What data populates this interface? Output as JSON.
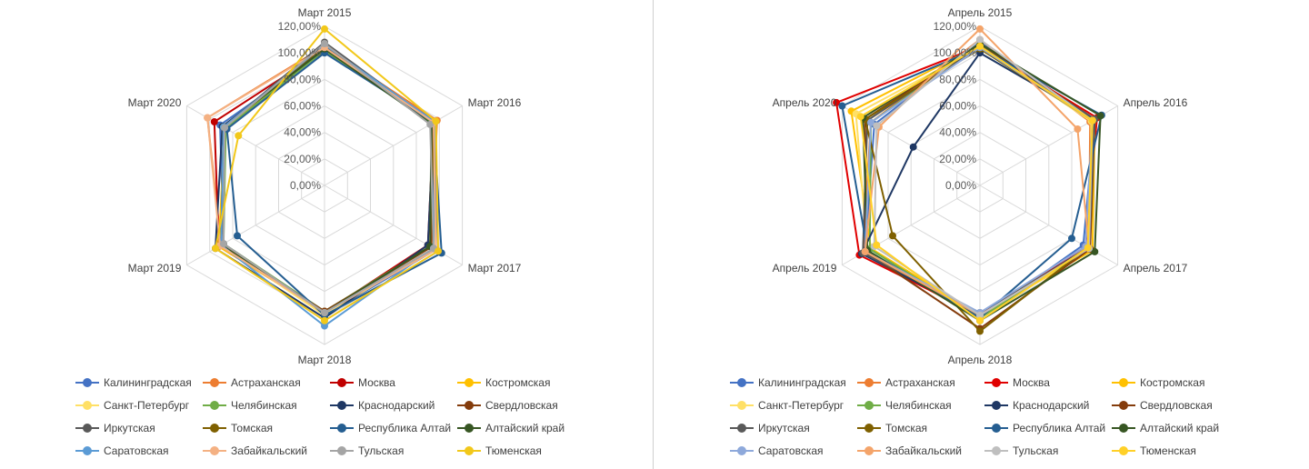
{
  "chart_data": [
    {
      "type": "radar",
      "title": "",
      "categories": [
        "Март 2015",
        "Март 2016",
        "Март 2017",
        "Март 2018",
        "Март 2019",
        "Март 2020"
      ],
      "r_ticks": [
        "0,00%",
        "20,00%",
        "40,00%",
        "60,00%",
        "80,00%",
        "100,00%",
        "120,00%"
      ],
      "rlim": [
        0,
        120
      ],
      "grid": true,
      "legend_position": "bottom",
      "series": [
        {
          "name": "Калининградская",
          "color": "#4472c4",
          "values": [
            101,
            97,
            97,
            98,
            88,
            91
          ]
        },
        {
          "name": "Астраханская",
          "color": "#ed7d31",
          "values": [
            105,
            98,
            93,
            95,
            90,
            102
          ]
        },
        {
          "name": "Москва",
          "color": "#c00000",
          "values": [
            102,
            95,
            90,
            96,
            92,
            96
          ]
        },
        {
          "name": "Костромская",
          "color": "#ffc000",
          "values": [
            104,
            95,
            92,
            96,
            92,
            87
          ]
        },
        {
          "name": "Санкт-Петербург",
          "color": "#ffe066",
          "values": [
            104,
            96,
            95,
            98,
            90,
            88
          ]
        },
        {
          "name": "Челябинская",
          "color": "#70ad47",
          "values": [
            102,
            94,
            92,
            95,
            88,
            86
          ]
        },
        {
          "name": "Краснодарский",
          "color": "#1f3864",
          "values": [
            103,
            95,
            90,
            100,
            95,
            89
          ]
        },
        {
          "name": "Свердловская",
          "color": "#843c0c",
          "values": [
            105,
            96,
            93,
            95,
            90,
            88
          ]
        },
        {
          "name": "Иркутская",
          "color": "#595959",
          "values": [
            108,
            95,
            95,
            96,
            88,
            88
          ]
        },
        {
          "name": "Томская",
          "color": "#7f6000",
          "values": [
            104,
            95,
            92,
            96,
            90,
            88
          ]
        },
        {
          "name": "Республика Алтай",
          "color": "#255e91",
          "values": [
            100,
            95,
            102,
            98,
            76,
            85
          ]
        },
        {
          "name": "Алтайский край",
          "color": "#375623",
          "values": [
            103,
            93,
            92,
            96,
            90,
            88
          ]
        },
        {
          "name": "Саратовская",
          "color": "#5b9bd5",
          "values": [
            106,
            96,
            95,
            106,
            90,
            88
          ]
        },
        {
          "name": "Забайкальский",
          "color": "#f4b183",
          "values": [
            104,
            95,
            97,
            96,
            91,
            102
          ]
        },
        {
          "name": "Тульская",
          "color": "#a5a5a5",
          "values": [
            107,
            92,
            95,
            96,
            88,
            87
          ]
        },
        {
          "name": "Тюменская",
          "color": "#f2c81a",
          "values": [
            118,
            97,
            99,
            102,
            95,
            75
          ]
        }
      ]
    },
    {
      "type": "radar",
      "title": "",
      "categories": [
        "Апрель 2015",
        "Апрель 2016",
        "Апрель 2017",
        "Апрель 2018",
        "Апрель 2019",
        "Апрель 2020"
      ],
      "r_ticks": [
        "0,00%",
        "20,00%",
        "40,00%",
        "60,00%",
        "80,00%",
        "100,00%",
        "120,00%"
      ],
      "rlim": [
        0,
        120
      ],
      "grid": true,
      "legend_position": "bottom",
      "series": [
        {
          "name": "Калининградская",
          "color": "#4472c4",
          "values": [
            108,
            100,
            90,
            100,
            100,
            92
          ]
        },
        {
          "name": "Астраханская",
          "color": "#ed7d31",
          "values": [
            110,
            96,
            95,
            100,
            102,
            95
          ]
        },
        {
          "name": "Москва",
          "color": "#e00000",
          "values": [
            105,
            102,
            92,
            98,
            105,
            125
          ]
        },
        {
          "name": "Костромская",
          "color": "#ffc000",
          "values": [
            106,
            100,
            98,
            98,
            95,
            112
          ]
        },
        {
          "name": "Санкт-Петербург",
          "color": "#ffe066",
          "values": [
            104,
            97,
            96,
            100,
            98,
            108
          ]
        },
        {
          "name": "Челябинская",
          "color": "#70ad47",
          "values": [
            106,
            100,
            95,
            100,
            96,
            95
          ]
        },
        {
          "name": "Краснодарский",
          "color": "#1f3864",
          "values": [
            100,
            100,
            94,
            98,
            103,
            58
          ]
        },
        {
          "name": "Свердловская",
          "color": "#843c0c",
          "values": [
            107,
            100,
            96,
            108,
            100,
            100
          ]
        },
        {
          "name": "Иркутская",
          "color": "#595959",
          "values": [
            105,
            100,
            95,
            96,
            102,
            98
          ]
        },
        {
          "name": "Томская",
          "color": "#7f6000",
          "values": [
            103,
            98,
            94,
            110,
            76,
            100
          ]
        },
        {
          "name": "Республика Алтай",
          "color": "#255e91",
          "values": [
            104,
            106,
            80,
            100,
            98,
            120
          ]
        },
        {
          "name": "Алтайский край",
          "color": "#375623",
          "values": [
            107,
            105,
            100,
            102,
            98,
            102
          ]
        },
        {
          "name": "Саратовская",
          "color": "#8ea9db",
          "values": [
            104,
            98,
            92,
            96,
            100,
            95
          ]
        },
        {
          "name": "Забайкальский",
          "color": "#f4a46a",
          "values": [
            118,
            85,
            95,
            98,
            100,
            88
          ]
        },
        {
          "name": "Тульская",
          "color": "#bfbfbf",
          "values": [
            110,
            98,
            95,
            98,
            92,
            90
          ]
        },
        {
          "name": "Тюменская",
          "color": "#ffd028",
          "values": [
            105,
            98,
            94,
            102,
            90,
            104
          ]
        }
      ]
    }
  ]
}
